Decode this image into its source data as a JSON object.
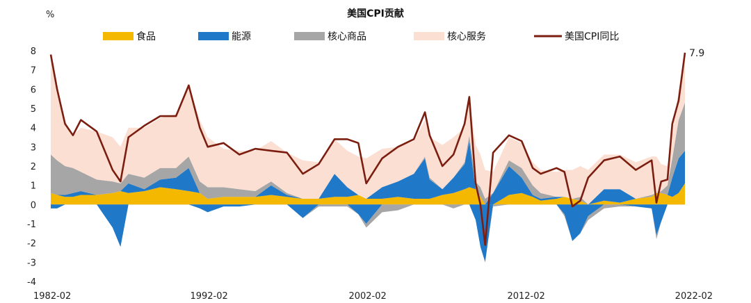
{
  "chart_data": {
    "type": "area",
    "title": "美国CPI贡献",
    "ylabel": "%",
    "ylim": [
      -4,
      8
    ],
    "yticks": [
      "8",
      "7",
      "6",
      "5",
      "4",
      "3",
      "2",
      "1",
      "0",
      "-1",
      "-2",
      "-3",
      "-4"
    ],
    "x_range": [
      "1982-02",
      "2022-02"
    ],
    "xticks": [
      "1982-02",
      "1992-02",
      "2002-02",
      "2012-02",
      "2022-02"
    ],
    "legend": [
      {
        "name": "食品",
        "color": "#F5B800",
        "kind": "area"
      },
      {
        "name": "能源",
        "color": "#1F78C8",
        "kind": "area"
      },
      {
        "name": "核心商品",
        "color": "#A6A6A6",
        "kind": "area"
      },
      {
        "name": "核心服务",
        "color": "#FBDFD3",
        "kind": "area"
      },
      {
        "name": "美国CPI同比",
        "color": "#7B1E10",
        "kind": "line"
      }
    ],
    "end_label": "7.9",
    "x_years": [
      1982.1,
      1982.5,
      1983.0,
      1983.5,
      1984.0,
      1985.0,
      1986.0,
      1986.5,
      1987.0,
      1988.0,
      1989.0,
      1990.0,
      1990.8,
      1991.5,
      1992.0,
      1993.0,
      1994.0,
      1995.0,
      1996.0,
      1997.0,
      1998.0,
      1999.0,
      2000.0,
      2000.8,
      2001.5,
      2002.0,
      2003.0,
      2004.0,
      2005.0,
      2005.7,
      2006.0,
      2006.8,
      2007.5,
      2008.2,
      2008.5,
      2008.9,
      2009.2,
      2009.5,
      2010.0,
      2011.0,
      2011.8,
      2012.5,
      2013.0,
      2014.0,
      2014.5,
      2015.0,
      2015.5,
      2016.0,
      2017.0,
      2018.0,
      2019.0,
      2020.0,
      2020.3,
      2020.6,
      2021.0,
      2021.3,
      2021.7,
      2022.1
    ],
    "series": [
      {
        "name": "食品",
        "values": [
          0.6,
          0.5,
          0.4,
          0.4,
          0.5,
          0.5,
          0.6,
          0.7,
          0.6,
          0.7,
          0.9,
          0.8,
          0.7,
          0.6,
          0.3,
          0.4,
          0.4,
          0.4,
          0.5,
          0.4,
          0.3,
          0.3,
          0.4,
          0.4,
          0.5,
          0.3,
          0.3,
          0.4,
          0.3,
          0.3,
          0.3,
          0.5,
          0.6,
          0.8,
          0.9,
          0.8,
          0.4,
          0.0,
          0.0,
          0.5,
          0.6,
          0.4,
          0.2,
          0.3,
          0.4,
          0.3,
          0.2,
          0.0,
          0.2,
          0.1,
          0.3,
          0.4,
          0.6,
          0.6,
          0.5,
          0.4,
          0.6,
          1.1
        ]
      },
      {
        "name": "能源",
        "values": [
          -0.2,
          -0.2,
          0.1,
          0.2,
          0.2,
          0.0,
          -1.2,
          -2.2,
          0.5,
          0.1,
          0.4,
          0.6,
          1.2,
          -0.2,
          -0.4,
          -0.1,
          -0.1,
          0.0,
          0.5,
          0.1,
          -0.7,
          0.0,
          1.2,
          0.5,
          -0.5,
          -1.0,
          0.6,
          0.8,
          1.3,
          2.1,
          1.0,
          0.3,
          0.8,
          1.3,
          2.4,
          -0.8,
          -2.2,
          -3.0,
          0.6,
          1.5,
          0.8,
          0.1,
          0.1,
          0.1,
          -0.5,
          -1.9,
          -1.5,
          -0.6,
          0.6,
          0.7,
          -0.1,
          -0.2,
          -1.6,
          -0.9,
          0.0,
          1.0,
          1.8,
          1.7
        ]
      },
      {
        "name": "核心商品",
        "values": [
          2.0,
          1.8,
          1.5,
          1.3,
          1.0,
          0.8,
          0.6,
          0.4,
          0.5,
          0.6,
          0.6,
          0.5,
          0.6,
          0.6,
          0.6,
          0.5,
          0.4,
          0.3,
          0.2,
          0.1,
          0.0,
          -0.1,
          -0.1,
          -0.1,
          0.0,
          -0.2,
          -0.4,
          -0.3,
          0.0,
          0.1,
          0.1,
          0.0,
          -0.2,
          0.1,
          0.3,
          0.4,
          0.5,
          0.3,
          -0.1,
          0.3,
          0.5,
          0.5,
          0.3,
          0.0,
          -0.1,
          0.0,
          0.2,
          -0.2,
          -0.2,
          -0.1,
          0.0,
          0.1,
          -0.2,
          0.1,
          0.5,
          1.0,
          2.0,
          2.5
        ]
      },
      {
        "name": "核心服务",
        "values": [
          5.3,
          3.9,
          2.2,
          1.7,
          2.3,
          2.5,
          2.3,
          1.9,
          2.4,
          2.6,
          2.6,
          2.8,
          3.7,
          3.2,
          2.6,
          2.0,
          2.0,
          2.1,
          2.1,
          2.1,
          2.0,
          1.9,
          1.8,
          1.9,
          2.0,
          2.1,
          2.0,
          1.8,
          1.7,
          1.9,
          2.1,
          2.3,
          2.1,
          1.8,
          1.9,
          1.9,
          1.7,
          1.5,
          1.1,
          1.2,
          1.3,
          1.2,
          1.2,
          1.3,
          1.4,
          1.5,
          1.6,
          1.8,
          1.8,
          1.8,
          1.9,
          2.0,
          1.9,
          1.4,
          1.0,
          1.4,
          1.5,
          2.6
        ]
      },
      {
        "name": "美国CPI同比",
        "values": [
          7.8,
          6.0,
          4.2,
          3.6,
          4.4,
          3.8,
          1.8,
          1.2,
          3.5,
          4.1,
          4.6,
          4.6,
          6.2,
          4.0,
          3.0,
          3.2,
          2.6,
          2.9,
          2.8,
          2.7,
          1.6,
          2.1,
          3.4,
          3.4,
          3.2,
          1.1,
          2.4,
          3.0,
          3.4,
          4.8,
          3.6,
          2.0,
          2.6,
          4.2,
          5.6,
          1.1,
          0.0,
          -2.1,
          2.7,
          3.6,
          3.3,
          1.9,
          1.6,
          1.9,
          1.7,
          -0.1,
          0.2,
          1.4,
          2.3,
          2.5,
          1.8,
          2.3,
          0.1,
          1.2,
          1.3,
          4.2,
          5.4,
          7.9
        ]
      }
    ]
  }
}
